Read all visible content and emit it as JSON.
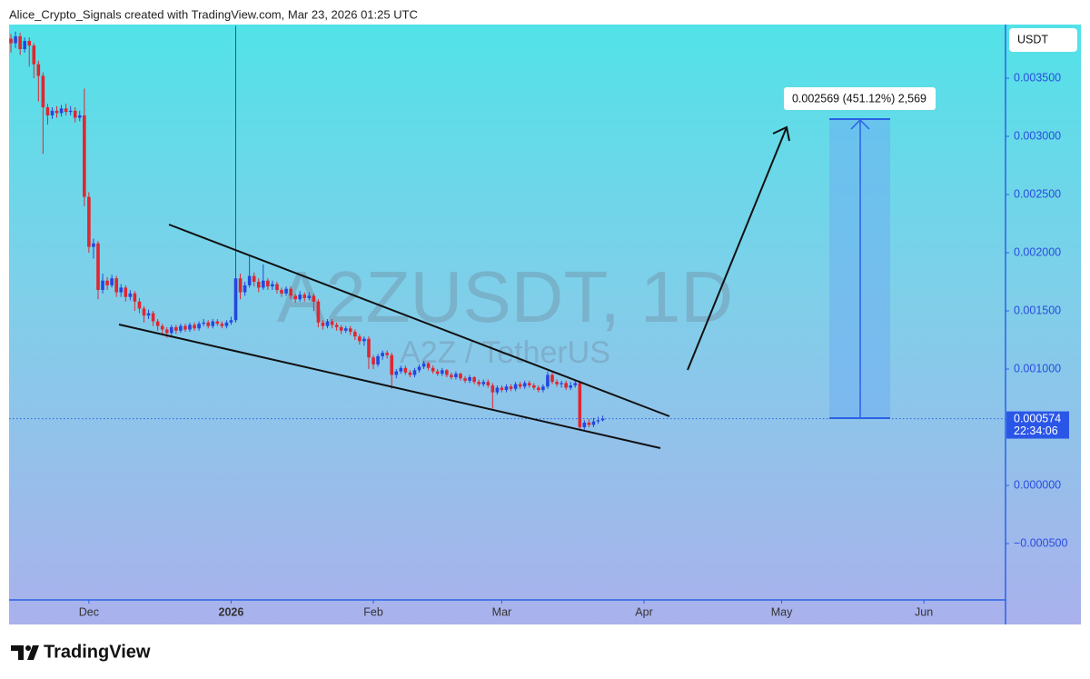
{
  "attribution": "Alice_Crypto_Signals created with TradingView.com, Mar 23, 2026 01:25 UTC",
  "brand": "TradingView",
  "chart_data": {
    "type": "candlestick",
    "symbol_watermark": "A2ZUSDT, 1D",
    "description": "A2Z / TetherUS",
    "currency": "USDT",
    "last_price": 0.000574,
    "countdown": "22:34:06",
    "measure_label": "0.002569 (451.12%) 2,569",
    "up_color": "#2447e0",
    "down_color": "#e0262f",
    "grid": false,
    "open": [
      0.00384,
      0.0038,
      0.00386,
      0.00375,
      0.00382,
      0.00378,
      0.00362,
      0.00352,
      0.00325,
      0.00318,
      0.00322,
      0.0032,
      0.00324,
      0.00321,
      0.00322,
      0.00316,
      0.00318,
      0.00248,
      0.00205,
      0.00208,
      0.00168,
      0.00176,
      0.00172,
      0.00178,
      0.00166,
      0.0017,
      0.00162,
      0.00165,
      0.00158,
      0.00152,
      0.00146,
      0.00148,
      0.00141,
      0.00137,
      0.00134,
      0.00131,
      0.00136,
      0.00133,
      0.00137,
      0.00134,
      0.00138,
      0.00135,
      0.00139,
      0.0014,
      0.00137,
      0.00141,
      0.00139,
      0.00137,
      0.0014,
      0.00142,
      0.00178,
      0.00166,
      0.00172,
      0.0018,
      0.00175,
      0.0017,
      0.00176,
      0.00171,
      0.00173,
      0.00168,
      0.00165,
      0.00169,
      0.00163,
      0.0016,
      0.00164,
      0.00161,
      0.00163,
      0.00158,
      0.0014,
      0.00137,
      0.00141,
      0.00138,
      0.00136,
      0.00133,
      0.00135,
      0.00132,
      0.00128,
      0.00124,
      0.00126,
      0.0011,
      0.00104,
      0.00111,
      0.00114,
      0.00112,
      0.00095,
      0.00098,
      0.00101,
      0.00097,
      0.00095,
      0.00099,
      0.00102,
      0.00105,
      0.00101,
      0.00098,
      0.00096,
      0.00099,
      0.00095,
      0.00093,
      0.00096,
      0.00092,
      0.0009,
      0.00093,
      0.00089,
      0.00087,
      0.00089,
      0.00086,
      0.0008,
      0.00084,
      0.00082,
      0.00085,
      0.00083,
      0.00087,
      0.00085,
      0.00088,
      0.00086,
      0.00084,
      0.00082,
      0.00085,
      0.00095,
      0.00089,
      0.00087,
      0.00088,
      0.00084,
      0.00086,
      0.00088,
      0.0005,
      0.00054,
      0.00052,
      0.00055,
      0.00056
    ],
    "high": [
      0.00388,
      0.0039,
      0.00389,
      0.00385,
      0.00385,
      0.0038,
      0.00365,
      0.00355,
      0.00328,
      0.00325,
      0.00326,
      0.00327,
      0.00328,
      0.00326,
      0.00325,
      0.00322,
      0.00341,
      0.00252,
      0.00212,
      0.0021,
      0.00182,
      0.00179,
      0.00181,
      0.0018,
      0.00173,
      0.00172,
      0.00168,
      0.00167,
      0.00161,
      0.00154,
      0.00151,
      0.0015,
      0.00143,
      0.00139,
      0.00136,
      0.00138,
      0.00138,
      0.00139,
      0.00139,
      0.0014,
      0.0014,
      0.00141,
      0.00143,
      0.00142,
      0.00143,
      0.00143,
      0.00141,
      0.00142,
      0.00145,
      0.00395,
      0.00182,
      0.00175,
      0.00198,
      0.00183,
      0.00178,
      0.0019,
      0.00178,
      0.00176,
      0.00175,
      0.0017,
      0.00171,
      0.00171,
      0.00165,
      0.00167,
      0.00166,
      0.00166,
      0.00165,
      0.0016,
      0.00142,
      0.00143,
      0.00143,
      0.0014,
      0.00138,
      0.00137,
      0.00137,
      0.00134,
      0.0013,
      0.00128,
      0.00128,
      0.00112,
      0.00113,
      0.00116,
      0.00116,
      0.00114,
      0.001,
      0.00103,
      0.00103,
      0.00099,
      0.00101,
      0.00104,
      0.00107,
      0.00106,
      0.00103,
      0.001,
      0.00101,
      0.001,
      0.00097,
      0.00098,
      0.00097,
      0.00094,
      0.00095,
      0.00094,
      0.00091,
      0.00091,
      0.00091,
      0.00088,
      0.00086,
      0.00086,
      0.00087,
      0.00087,
      0.00089,
      0.00089,
      0.0009,
      0.0009,
      0.00088,
      0.00086,
      0.00087,
      0.00098,
      0.00097,
      0.00091,
      0.0009,
      0.0009,
      0.00089,
      0.0009,
      0.0009,
      0.00056,
      0.00057,
      0.00058,
      0.00059,
      0.0006
    ],
    "low": [
      0.00372,
      0.00376,
      0.0037,
      0.00372,
      0.0036,
      0.0035,
      0.0033,
      0.00285,
      0.0031,
      0.00315,
      0.00316,
      0.00317,
      0.00318,
      0.00318,
      0.00312,
      0.00313,
      0.0024,
      0.002,
      0.00195,
      0.0016,
      0.00165,
      0.00168,
      0.0017,
      0.00162,
      0.00162,
      0.00158,
      0.00159,
      0.0015,
      0.00148,
      0.0014,
      0.00143,
      0.00137,
      0.00133,
      0.0013,
      0.00127,
      0.00129,
      0.0013,
      0.00131,
      0.00132,
      0.00132,
      0.00133,
      0.00133,
      0.00137,
      0.00135,
      0.00135,
      0.00137,
      0.00135,
      0.00135,
      0.00138,
      0.0014,
      0.0016,
      0.00163,
      0.0017,
      0.00171,
      0.00166,
      0.00168,
      0.00168,
      0.00168,
      0.00165,
      0.00162,
      0.00163,
      0.0016,
      0.00157,
      0.00158,
      0.00158,
      0.00159,
      0.0015,
      0.00136,
      0.00134,
      0.00135,
      0.00135,
      0.00133,
      0.0013,
      0.00131,
      0.00129,
      0.00125,
      0.00121,
      0.0012,
      0.001,
      0.001,
      0.00102,
      0.00108,
      0.00109,
      0.00083,
      0.00092,
      0.00096,
      0.00095,
      0.00093,
      0.00093,
      0.00097,
      0.001,
      0.00099,
      0.00096,
      0.00094,
      0.00094,
      0.00093,
      0.00091,
      0.00091,
      0.0009,
      0.00088,
      0.00088,
      0.00087,
      0.00085,
      0.00085,
      0.00084,
      0.00066,
      0.00078,
      0.0008,
      0.0008,
      0.00081,
      0.00081,
      0.00083,
      0.00083,
      0.00084,
      0.00082,
      0.0008,
      0.0008,
      0.00083,
      0.00087,
      0.00085,
      0.00084,
      0.00082,
      0.00082,
      0.00084,
      0.00048,
      0.00048,
      0.0005,
      0.0005,
      0.00053,
      0.00055
    ],
    "close": [
      0.0038,
      0.00386,
      0.00375,
      0.00382,
      0.00378,
      0.00362,
      0.00352,
      0.00325,
      0.00318,
      0.00322,
      0.0032,
      0.00324,
      0.00321,
      0.00322,
      0.00316,
      0.00318,
      0.00248,
      0.00205,
      0.00208,
      0.00168,
      0.00176,
      0.00172,
      0.00178,
      0.00166,
      0.0017,
      0.00162,
      0.00165,
      0.00158,
      0.00152,
      0.00146,
      0.00148,
      0.00141,
      0.00137,
      0.00134,
      0.00131,
      0.00136,
      0.00133,
      0.00137,
      0.00134,
      0.00138,
      0.00135,
      0.00139,
      0.0014,
      0.00137,
      0.00141,
      0.00139,
      0.00137,
      0.0014,
      0.00142,
      0.00178,
      0.00166,
      0.00172,
      0.0018,
      0.00175,
      0.0017,
      0.00176,
      0.00171,
      0.00173,
      0.00168,
      0.00165,
      0.00169,
      0.00163,
      0.0016,
      0.00164,
      0.00161,
      0.00163,
      0.00158,
      0.0014,
      0.00137,
      0.00141,
      0.00138,
      0.00136,
      0.00133,
      0.00135,
      0.00132,
      0.00128,
      0.00124,
      0.00126,
      0.0011,
      0.00104,
      0.00111,
      0.00114,
      0.00112,
      0.00095,
      0.00098,
      0.00101,
      0.00097,
      0.00095,
      0.00099,
      0.00102,
      0.00105,
      0.00101,
      0.00098,
      0.00096,
      0.00099,
      0.00095,
      0.00093,
      0.00096,
      0.00092,
      0.0009,
      0.00093,
      0.00089,
      0.00087,
      0.00089,
      0.00086,
      0.0008,
      0.00084,
      0.00082,
      0.00085,
      0.00083,
      0.00087,
      0.00085,
      0.00088,
      0.00086,
      0.00084,
      0.00082,
      0.00085,
      0.00095,
      0.00089,
      0.00087,
      0.00088,
      0.00084,
      0.00086,
      0.00088,
      0.0005,
      0.00054,
      0.00052,
      0.00055,
      0.00056,
      0.000574
    ],
    "xlim": [
      -0.4,
      216.8
    ],
    "xticks": [
      {
        "value": 17,
        "label": "Dec"
      },
      {
        "value": 48,
        "label": "2026"
      },
      {
        "value": 79,
        "label": "Feb"
      },
      {
        "value": 107,
        "label": "Mar"
      },
      {
        "value": 138,
        "label": "Apr"
      },
      {
        "value": 168,
        "label": "May"
      },
      {
        "value": 199,
        "label": "Jun"
      }
    ],
    "ylim": [
      -0.000984,
      0.003961
    ],
    "yticks": [
      {
        "value": -0.0005,
        "label": "−0.000500"
      },
      {
        "value": 0,
        "label": "0.000000"
      },
      {
        "value": 0.001,
        "label": "0.001000"
      },
      {
        "value": 0.0015,
        "label": "0.001500"
      },
      {
        "value": 0.002,
        "label": "0.002000"
      },
      {
        "value": 0.0025,
        "label": "0.002500"
      },
      {
        "value": 0.003,
        "label": "0.003000"
      },
      {
        "value": 0.0035,
        "label": "0.003500"
      }
    ]
  }
}
